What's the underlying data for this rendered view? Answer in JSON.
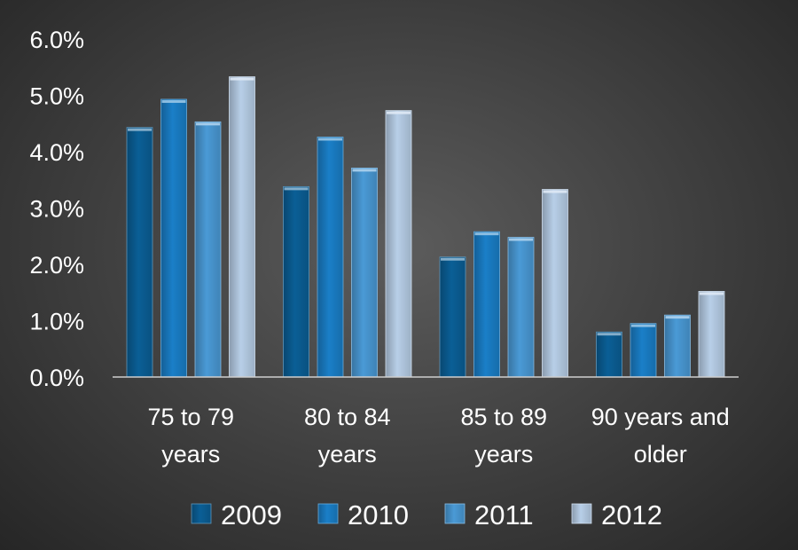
{
  "chart_data": {
    "type": "bar",
    "categories": [
      [
        "75 to 79",
        "years"
      ],
      [
        "80 to 84",
        "years"
      ],
      [
        "85 to 89",
        "years"
      ],
      [
        "90 years and",
        "older"
      ]
    ],
    "series": [
      {
        "name": "2009",
        "values": [
          4.43,
          3.38,
          2.13,
          0.8
        ],
        "color": "#0a5f96"
      },
      {
        "name": "2010",
        "values": [
          4.93,
          4.26,
          2.58,
          0.95
        ],
        "color": "#1a7fc8"
      },
      {
        "name": "2011",
        "values": [
          4.53,
          3.71,
          2.48,
          1.1
        ],
        "color": "#4a9ad6"
      },
      {
        "name": "2012",
        "values": [
          5.33,
          4.73,
          3.33,
          1.52
        ],
        "color": "#b8cfe8"
      }
    ],
    "ylim": [
      0,
      6
    ],
    "yticks": [
      "0.0%",
      "1.0%",
      "2.0%",
      "3.0%",
      "4.0%",
      "5.0%",
      "6.0%"
    ],
    "legend_position": "bottom",
    "grid": false
  }
}
